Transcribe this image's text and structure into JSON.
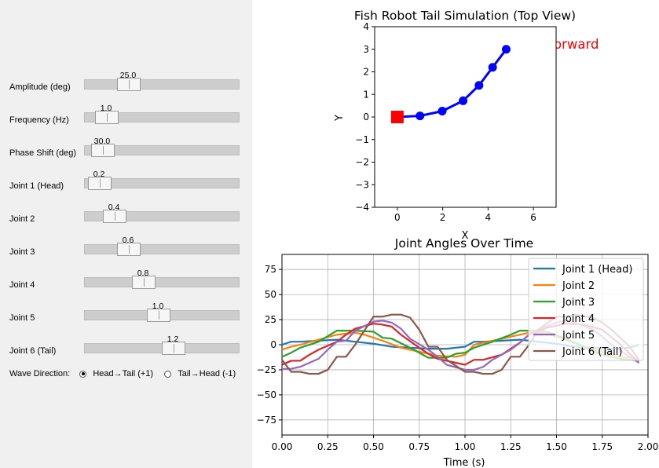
{
  "controls": {
    "sliders": [
      {
        "label": "Amplitude (deg)",
        "value": "25.0",
        "fraction": 0.247
      },
      {
        "label": "Frequency (Hz)",
        "value": "1.0",
        "fraction": 0.078
      },
      {
        "label": "Phase Shift (deg)",
        "value": "30.0",
        "fraction": 0.047
      },
      {
        "label": "Joint 1 (Head)",
        "value": "0.2",
        "fraction": 0.026
      },
      {
        "label": "Joint 2",
        "value": "0.4",
        "fraction": 0.136
      },
      {
        "label": "Joint 3",
        "value": "0.6",
        "fraction": 0.247
      },
      {
        "label": "Joint 4",
        "value": "0.8",
        "fraction": 0.357
      },
      {
        "label": "Joint 5",
        "value": "1.0",
        "fraction": 0.468
      },
      {
        "label": "Joint 6 (Tail)",
        "value": "1.2",
        "fraction": 0.584
      }
    ],
    "wave_direction": {
      "label": "Wave Direction:",
      "options": [
        {
          "label": "Head→Tail (+1)",
          "selected": true
        },
        {
          "label": "Tail→Head (-1)",
          "selected": false
        }
      ]
    }
  },
  "chart_data": [
    {
      "type": "line",
      "title": "Fish Robot Tail Simulation (Top View)",
      "xlabel": "X",
      "ylabel": "Y",
      "xlim": [
        -1,
        7
      ],
      "ylim": [
        -4,
        4
      ],
      "x_ticks": [
        "0",
        "2",
        "4",
        "6"
      ],
      "y_ticks": [
        "−4",
        "−3",
        "−2",
        "−1",
        "0",
        "1",
        "2",
        "3",
        "4"
      ],
      "annotation": "← Forward",
      "annotation_color": "#ff0000",
      "line_color": "#0000ff",
      "marker_color": "#0000ff",
      "head_color": "#ff0000",
      "series": [
        {
          "name": "tail",
          "x": [
            0,
            1,
            1.98,
            2.9,
            3.6,
            4.2,
            4.8
          ],
          "y": [
            0,
            0.05,
            0.26,
            0.72,
            1.4,
            2.2,
            3.0
          ]
        }
      ],
      "head_marker": {
        "x": 0,
        "y": 0
      }
    },
    {
      "type": "line",
      "title": "Joint Angles Over Time",
      "xlabel": "Time (s)",
      "ylabel": "",
      "xlim": [
        0,
        2
      ],
      "ylim": [
        -90,
        90
      ],
      "grid": true,
      "legend_position": "top-right",
      "x_ticks": [
        "0.00",
        "0.25",
        "0.50",
        "0.75",
        "1.00",
        "1.25",
        "1.50",
        "1.75",
        "2.00"
      ],
      "y_ticks": [
        "−75",
        "−50",
        "−25",
        "0",
        "25",
        "50",
        "75"
      ],
      "series": [
        {
          "name": "Joint 1 (Head)",
          "color": "#1f77b4",
          "x": [
            0,
            0.05,
            0.1,
            0.2,
            0.3,
            0.4,
            0.5,
            0.6,
            0.7,
            0.8,
            0.9,
            1.0,
            1.05,
            1.1,
            1.2,
            1.3,
            1.4,
            1.5,
            1.6,
            1.7,
            1.8,
            1.9,
            1.95
          ],
          "y": [
            0,
            3,
            3,
            4,
            5,
            3,
            1,
            -2,
            -3,
            -4,
            -4,
            -2,
            3,
            3,
            4,
            5,
            3,
            1,
            -2,
            -3,
            -4,
            -3,
            0
          ]
        },
        {
          "name": "Joint 2",
          "color": "#ff7f0e",
          "x": [
            0,
            0.05,
            0.1,
            0.2,
            0.3,
            0.4,
            0.45,
            0.55,
            0.65,
            0.75,
            0.85,
            0.95,
            1.0,
            1.05,
            1.15,
            1.25,
            1.35,
            1.45,
            1.55,
            1.65,
            1.75,
            1.85,
            1.95
          ],
          "y": [
            -5,
            -2,
            0,
            5,
            10,
            12,
            10,
            4,
            -3,
            -7,
            -11,
            -12,
            -10,
            0,
            4,
            8,
            12,
            11,
            5,
            -2,
            -7,
            -12,
            -14
          ]
        },
        {
          "name": "Joint 3",
          "color": "#2ca02c",
          "x": [
            0,
            0.05,
            0.1,
            0.2,
            0.3,
            0.35,
            0.4,
            0.5,
            0.55,
            0.6,
            0.7,
            0.8,
            0.9,
            0.95,
            1.0,
            1.05,
            1.15,
            1.25,
            1.3,
            1.35,
            1.45,
            1.55,
            1.65,
            1.75,
            1.85,
            1.95
          ],
          "y": [
            -12,
            -8,
            -3,
            3,
            14,
            14,
            14,
            13,
            7,
            6,
            -3,
            -13,
            -13,
            -9,
            -8,
            -3,
            3,
            10,
            14,
            14,
            13,
            6,
            -2,
            -10,
            -14,
            -16
          ]
        },
        {
          "name": "Joint 4",
          "color": "#d62728",
          "x": [
            0,
            0.05,
            0.1,
            0.15,
            0.2,
            0.3,
            0.35,
            0.4,
            0.5,
            0.55,
            0.6,
            0.65,
            0.75,
            0.8,
            0.85,
            0.95,
            1.0,
            1.05,
            1.1,
            1.2,
            1.3,
            1.35,
            1.45,
            1.55,
            1.65,
            1.75,
            1.85,
            1.95
          ],
          "y": [
            -20,
            -16,
            -16,
            -10,
            -5,
            3,
            10,
            16,
            21,
            20,
            18,
            10,
            -3,
            -9,
            -14,
            -18,
            -20,
            -15,
            -15,
            -10,
            2,
            10,
            17,
            21,
            20,
            15,
            0,
            -18
          ]
        },
        {
          "name": "Joint 5",
          "color": "#9467bd",
          "x": [
            0,
            0.05,
            0.1,
            0.2,
            0.25,
            0.3,
            0.35,
            0.4,
            0.5,
            0.55,
            0.6,
            0.65,
            0.7,
            0.8,
            0.85,
            0.9,
            1.0,
            1.05,
            1.1,
            1.15,
            1.25,
            1.3,
            1.35,
            1.4,
            1.5,
            1.55,
            1.6,
            1.7,
            1.75,
            1.8,
            1.9,
            1.95
          ],
          "y": [
            -24,
            -24,
            -22,
            -14,
            -5,
            3,
            4,
            14,
            23,
            24,
            22,
            16,
            6,
            -5,
            -12,
            -20,
            -25,
            -25,
            -22,
            -15,
            -5,
            2,
            10,
            15,
            22,
            24,
            22,
            15,
            8,
            0,
            -12,
            -18
          ]
        },
        {
          "name": "Joint 6 (Tail)",
          "color": "#8c564b",
          "x": [
            0,
            0.05,
            0.1,
            0.15,
            0.2,
            0.25,
            0.3,
            0.35,
            0.4,
            0.5,
            0.55,
            0.6,
            0.65,
            0.7,
            0.75,
            0.8,
            0.85,
            0.9,
            1.0,
            1.05,
            1.1,
            1.15,
            1.2,
            1.25,
            1.3,
            1.35,
            1.4,
            1.5,
            1.55,
            1.6,
            1.7,
            1.75,
            1.8,
            1.9,
            1.95
          ],
          "y": [
            -15,
            -27,
            -27,
            -29,
            -29,
            -25,
            -12,
            -12,
            0,
            28,
            28,
            30,
            30,
            27,
            15,
            -2,
            -2,
            -15,
            -27,
            -27,
            -29,
            -29,
            -25,
            -12,
            -12,
            0,
            15,
            28,
            28,
            30,
            27,
            22,
            15,
            -2,
            -15
          ]
        }
      ]
    }
  ]
}
